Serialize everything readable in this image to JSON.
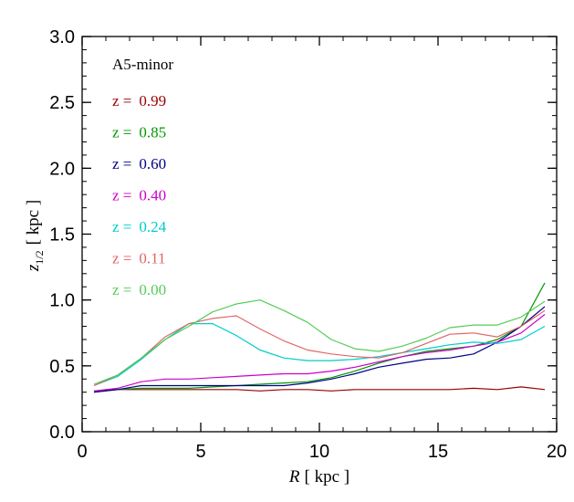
{
  "chart_data": {
    "type": "line",
    "annotation": "A5-minor",
    "xlabel": {
      "var": "R",
      "unit": "[ kpc ]"
    },
    "ylabel": {
      "var": "z",
      "sub": "1/2",
      "unit": "[ kpc ]"
    },
    "xlim": [
      0,
      20
    ],
    "ylim": [
      0,
      3
    ],
    "x_ticks": [
      0,
      5,
      10,
      15,
      20
    ],
    "x_tick_labels": [
      "0",
      "5",
      "10",
      "15",
      "20"
    ],
    "y_ticks": [
      0,
      0.5,
      1,
      1.5,
      2,
      2.5,
      3
    ],
    "y_tick_labels": [
      "0.0",
      "0.5",
      "1.0",
      "1.5",
      "2.0",
      "2.5",
      "3.0"
    ],
    "x_minor_step": 1,
    "y_minor_step": 0.1,
    "grid": false,
    "legend_position": "top-left",
    "x": [
      0.5,
      1.5,
      2.5,
      3.5,
      4.5,
      5.5,
      6.5,
      7.5,
      8.5,
      9.5,
      10.5,
      11.5,
      12.5,
      13.5,
      14.5,
      15.5,
      16.5,
      17.5,
      18.5,
      19.5
    ],
    "series": [
      {
        "prefix": "z =",
        "value": "0.99",
        "color": "#990000",
        "values": [
          0.31,
          0.32,
          0.32,
          0.32,
          0.32,
          0.32,
          0.32,
          0.31,
          0.32,
          0.32,
          0.31,
          0.32,
          0.32,
          0.32,
          0.32,
          0.32,
          0.33,
          0.32,
          0.34,
          0.32
        ]
      },
      {
        "prefix": "z =",
        "value": "0.85",
        "color": "#009900",
        "values": [
          0.3,
          0.32,
          0.33,
          0.33,
          0.33,
          0.34,
          0.35,
          0.36,
          0.37,
          0.38,
          0.41,
          0.46,
          0.52,
          0.57,
          0.61,
          0.63,
          0.65,
          0.7,
          0.8,
          1.13
        ]
      },
      {
        "prefix": "z =",
        "value": "0.60",
        "color": "#000088",
        "values": [
          0.3,
          0.32,
          0.35,
          0.35,
          0.35,
          0.35,
          0.35,
          0.35,
          0.35,
          0.37,
          0.4,
          0.44,
          0.49,
          0.52,
          0.55,
          0.56,
          0.59,
          0.68,
          0.8,
          0.95
        ]
      },
      {
        "prefix": "z =",
        "value": "0.40",
        "color": "#cc00cc",
        "values": [
          0.31,
          0.33,
          0.38,
          0.4,
          0.4,
          0.41,
          0.42,
          0.43,
          0.44,
          0.44,
          0.46,
          0.49,
          0.53,
          0.57,
          0.6,
          0.62,
          0.65,
          0.68,
          0.75,
          0.89
        ]
      },
      {
        "prefix": "z =",
        "value": "0.24",
        "color": "#00cccc",
        "values": [
          0.35,
          0.42,
          0.55,
          0.7,
          0.82,
          0.82,
          0.73,
          0.62,
          0.56,
          0.54,
          0.54,
          0.55,
          0.57,
          0.6,
          0.63,
          0.66,
          0.68,
          0.67,
          0.7,
          0.8
        ]
      },
      {
        "prefix": "z =",
        "value": "0.11",
        "color": "#e06666",
        "values": [
          0.35,
          0.43,
          0.56,
          0.72,
          0.82,
          0.86,
          0.88,
          0.78,
          0.69,
          0.62,
          0.59,
          0.57,
          0.56,
          0.6,
          0.67,
          0.74,
          0.75,
          0.72,
          0.8,
          0.92
        ]
      },
      {
        "prefix": "z =",
        "value": "0.00",
        "color": "#55cc55",
        "values": [
          0.36,
          0.43,
          0.56,
          0.7,
          0.8,
          0.91,
          0.97,
          1.0,
          0.92,
          0.83,
          0.7,
          0.63,
          0.61,
          0.65,
          0.71,
          0.79,
          0.81,
          0.81,
          0.87,
          0.99
        ]
      }
    ]
  }
}
